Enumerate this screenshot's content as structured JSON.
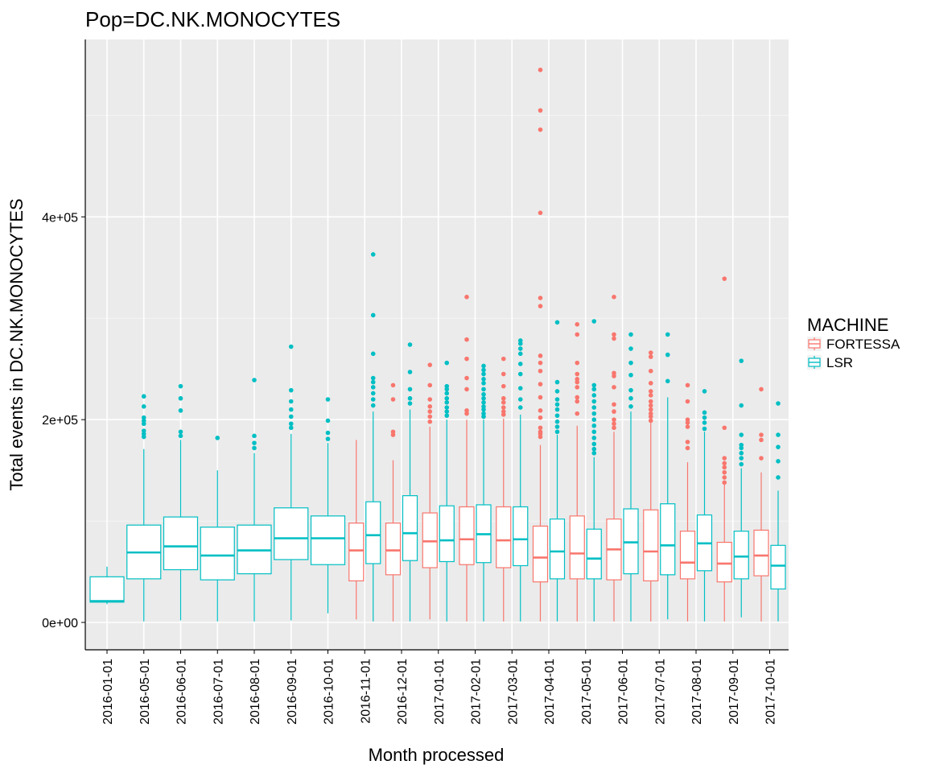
{
  "chart_data": {
    "type": "boxplot",
    "title": "Pop=DC.NK.MONOCYTES",
    "xlabel": "Month processed",
    "ylabel": "Total events in DC.NK.MONOCYTES",
    "ylim": [
      -27000,
      575000
    ],
    "yticks": [
      {
        "value": 0,
        "label": "0e+00"
      },
      {
        "value": 200000,
        "label": "2e+05"
      },
      {
        "value": 400000,
        "label": "4e+05"
      }
    ],
    "categories": [
      "2016-01-01",
      "2016-05-01",
      "2016-06-01",
      "2016-07-01",
      "2016-08-01",
      "2016-09-01",
      "2016-10-01",
      "2016-11-01",
      "2016-12-01",
      "2017-01-01",
      "2017-02-01",
      "2017-03-01",
      "2017-04-01",
      "2017-05-01",
      "2017-06-01",
      "2017-07-01",
      "2017-08-01",
      "2017-09-01",
      "2017-10-01"
    ],
    "legend": {
      "title": "MACHINE",
      "position": "right",
      "items": [
        {
          "label": "FORTESSA",
          "color": "#F8766D"
        },
        {
          "label": "LSR",
          "color": "#00BFC4"
        }
      ]
    },
    "grid": true,
    "series": [
      {
        "name": "FORTESSA",
        "color": "#F8766D",
        "boxes": [
          null,
          null,
          null,
          null,
          null,
          null,
          null,
          {
            "low": 3000,
            "q1": 41000,
            "median": 71000,
            "q3": 98000,
            "high": 180000,
            "outliers": []
          },
          {
            "low": 1000,
            "q1": 47000,
            "median": 71000,
            "q3": 98000,
            "high": 160000,
            "outliers": [
              185000,
              188000,
              220000,
              234000
            ]
          },
          {
            "low": 3000,
            "q1": 54000,
            "median": 80000,
            "q3": 108000,
            "high": 193000,
            "outliers": [
              198000,
              203000,
              208000,
              213000,
              220000,
              234000,
              254000
            ]
          },
          {
            "low": 1000,
            "q1": 57000,
            "median": 82000,
            "q3": 114000,
            "high": 200000,
            "outliers": [
              206000,
              209000,
              230000,
              241000,
              260000,
              279000,
              321000
            ]
          },
          {
            "low": 1000,
            "q1": 54000,
            "median": 81000,
            "q3": 114000,
            "high": 201000,
            "outliers": [
              205000,
              208000,
              212000,
              217000,
              221000,
              233000,
              245000,
              260000
            ]
          },
          {
            "low": 1000,
            "q1": 40000,
            "median": 64000,
            "q3": 95000,
            "high": 175000,
            "outliers": [
              183000,
              186000,
              188000,
              192000,
              202000,
              209000,
              222000,
              235000,
              248000,
              256000,
              263000,
              312000,
              320000,
              404000,
              486000,
              505000,
              545000
            ]
          },
          {
            "low": 1000,
            "q1": 43000,
            "median": 68000,
            "q3": 105000,
            "high": 194000,
            "outliers": [
              206000,
              218000,
              222000,
              232000,
              237000,
              240000,
              245000,
              256000,
              284000,
              294000
            ]
          },
          {
            "low": 1000,
            "q1": 42000,
            "median": 72000,
            "q3": 102000,
            "high": 188000,
            "outliers": [
              192000,
              196000,
              200000,
              208000,
              215000,
              232000,
              243000,
              246000,
              280000,
              284000,
              321000
            ]
          },
          {
            "low": 1000,
            "q1": 41000,
            "median": 70000,
            "q3": 111000,
            "high": 197000,
            "outliers": [
              199000,
              203000,
              206000,
              210000,
              214000,
              218000,
              224000,
              228000,
              236000,
              248000,
              262000,
              266000
            ]
          },
          {
            "low": 1000,
            "q1": 43000,
            "median": 59000,
            "q3": 90000,
            "high": 158000,
            "outliers": [
              172000,
              178000,
              193000,
              197000,
              200000,
              218000,
              234000
            ]
          },
          {
            "low": 1000,
            "q1": 40000,
            "median": 58000,
            "q3": 79000,
            "high": 136000,
            "outliers": [
              138000,
              143000,
              148000,
              153000,
              157000,
              162000,
              192000,
              339000
            ]
          },
          {
            "low": 1000,
            "q1": 46000,
            "median": 66000,
            "q3": 91000,
            "high": 148000,
            "outliers": [
              162000,
              180000,
              185000,
              230000
            ]
          }
        ]
      },
      {
        "name": "LSR",
        "color": "#00BFC4",
        "boxes": [
          {
            "low": 18000,
            "q1": 20000,
            "median": 21000,
            "q3": 45000,
            "high": 55000,
            "outliers": []
          },
          {
            "low": 1000,
            "q1": 43000,
            "median": 69000,
            "q3": 96000,
            "high": 171000,
            "outliers": [
              183000,
              186000,
              189000,
              196000,
              199000,
              202000,
              213000,
              223000
            ]
          },
          {
            "low": 2000,
            "q1": 52000,
            "median": 75000,
            "q3": 104000,
            "high": 180000,
            "outliers": [
              184000,
              188000,
              209000,
              221000,
              233000
            ]
          },
          {
            "low": 1000,
            "q1": 42000,
            "median": 66000,
            "q3": 94000,
            "high": 150000,
            "outliers": [
              182000
            ]
          },
          {
            "low": 1000,
            "q1": 48000,
            "median": 71000,
            "q3": 96000,
            "high": 167000,
            "outliers": [
              172000,
              177000,
              184000,
              239000
            ]
          },
          {
            "low": 2000,
            "q1": 62000,
            "median": 83000,
            "q3": 113000,
            "high": 186000,
            "outliers": [
              192000,
              196000,
              203000,
              210000,
              218000,
              229000,
              272000
            ]
          },
          {
            "low": 9000,
            "q1": 57000,
            "median": 83000,
            "q3": 105000,
            "high": 177000,
            "outliers": [
              181000,
              187000,
              199000,
              220000
            ]
          },
          {
            "low": 1000,
            "q1": 58000,
            "median": 86000,
            "q3": 119000,
            "high": 208000,
            "outliers": [
              214000,
              220000,
              226000,
              232000,
              237000,
              241000,
              265000,
              303000,
              363000
            ]
          },
          {
            "low": 1000,
            "q1": 61000,
            "median": 88000,
            "q3": 125000,
            "high": 210000,
            "outliers": [
              216000,
              221000,
              230000,
              247000,
              274000
            ]
          },
          {
            "low": 1000,
            "q1": 60000,
            "median": 81000,
            "q3": 115000,
            "high": 200000,
            "outliers": [
              204000,
              208000,
              212000,
              217000,
              221000,
              226000,
              230000,
              233000,
              256000
            ]
          },
          {
            "low": 1000,
            "q1": 59000,
            "median": 87000,
            "q3": 116000,
            "high": 200000,
            "outliers": [
              203000,
              206000,
              210000,
              213000,
              217000,
              221000,
              225000,
              230000,
              236000,
              240000,
              245000,
              249000,
              253000
            ]
          },
          {
            "low": 1000,
            "q1": 56000,
            "median": 82000,
            "q3": 114000,
            "high": 205000,
            "outliers": [
              212000,
              220000,
              231000,
              245000,
              255000,
              265000,
              270000,
              275000,
              278000
            ]
          },
          {
            "low": 1000,
            "q1": 43000,
            "median": 70000,
            "q3": 102000,
            "high": 185000,
            "outliers": [
              188000,
              193000,
              198000,
              204000,
              210000,
              215000,
              220000,
              228000,
              237000,
              296000
            ]
          },
          {
            "low": 1000,
            "q1": 43000,
            "median": 63000,
            "q3": 92000,
            "high": 163000,
            "outliers": [
              167000,
              171000,
              176000,
              182000,
              188000,
              194000,
              200000,
              206000,
              212000,
              218000,
              224000,
              230000,
              234000,
              297000
            ]
          },
          {
            "low": 1000,
            "q1": 48000,
            "median": 79000,
            "q3": 112000,
            "high": 208000,
            "outliers": [
              213000,
              221000,
              229000,
              244000,
              256000,
              270000,
              284000
            ]
          },
          {
            "low": 3000,
            "q1": 47000,
            "median": 76000,
            "q3": 117000,
            "high": 222000,
            "outliers": [
              238000,
              264000,
              284000
            ]
          },
          {
            "low": 1000,
            "q1": 51000,
            "median": 78000,
            "q3": 106000,
            "high": 188000,
            "outliers": [
              191000,
              197000,
              202000,
              207000,
              228000
            ]
          },
          {
            "low": 5000,
            "q1": 43000,
            "median": 65000,
            "q3": 90000,
            "high": 152000,
            "outliers": [
              156000,
              162000,
              167000,
              172000,
              175000,
              185000,
              214000,
              258000
            ]
          },
          {
            "low": 1000,
            "q1": 33000,
            "median": 56000,
            "q3": 76000,
            "high": 130000,
            "outliers": [
              143000,
              159000,
              173000,
              185000,
              216000
            ]
          }
        ]
      }
    ]
  }
}
